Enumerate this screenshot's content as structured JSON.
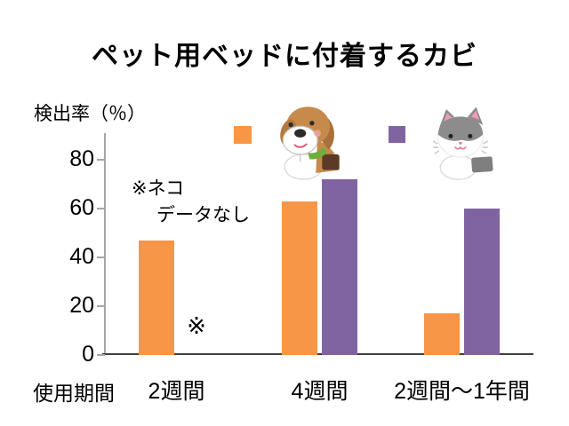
{
  "title": "ペット用ベッドに付着するカビ",
  "y_axis_label": "検出率（％）",
  "x_axis_label": "使用期間",
  "annotation": {
    "line1": "※ネコ",
    "line2": "データなし",
    "missing_marker": "※"
  },
  "legend": {
    "items": [
      {
        "name": "dog",
        "icon": "dog-illustration",
        "color": "#F79646"
      },
      {
        "name": "cat",
        "icon": "cat-illustration",
        "color": "#8064A2"
      }
    ],
    "position": "top"
  },
  "colors": {
    "dog_bar": "#F79646",
    "cat_bar": "#8064A2",
    "y_axis": "#A6A6A6",
    "x_axis": "#3F3F3F",
    "text": "#000000"
  },
  "chart_data": {
    "type": "bar",
    "title": "ペット用ベッドに付着するカビ",
    "xlabel": "使用期間",
    "ylabel": "検出率（％）",
    "categories": [
      "2週間",
      "4週間",
      "2週間～1年間"
    ],
    "series": [
      {
        "name": "犬（イヌ）",
        "color": "#F79646",
        "values": [
          47,
          63,
          17
        ]
      },
      {
        "name": "ネコ",
        "color": "#8064A2",
        "values": [
          null,
          72,
          60
        ]
      }
    ],
    "ylim": [
      0,
      80
    ],
    "yticks": [
      0,
      20,
      40,
      60,
      80
    ],
    "grid": false,
    "legend_position": "top",
    "note": "※ネコ データなし（2週間のネコのデータは無い）"
  }
}
